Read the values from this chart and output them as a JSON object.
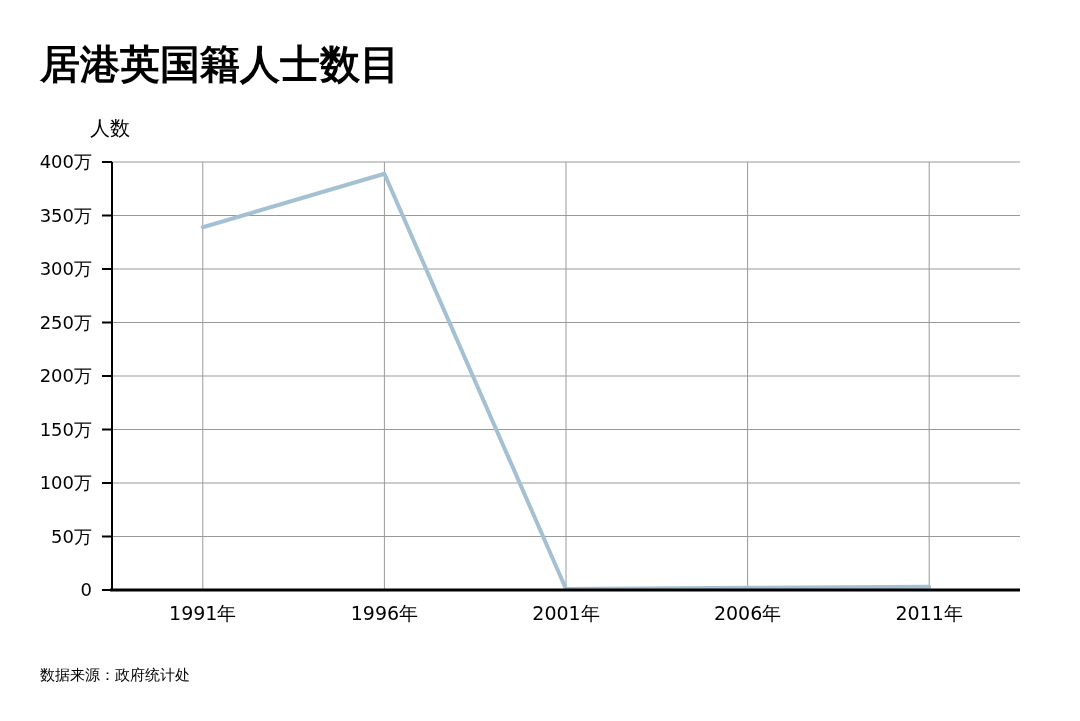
{
  "chart_data": {
    "type": "line",
    "title": "居港英国籍人士数目",
    "ylabel": "人数",
    "categories": [
      "1991年",
      "1996年",
      "2001年",
      "2006年",
      "2011年"
    ],
    "series": [
      {
        "color": "#a3c1d3",
        "values": [
          339,
          389,
          1,
          2,
          3
        ]
      }
    ],
    "ylim": [
      0,
      400
    ],
    "yticks": [
      0,
      {
        "value": 50,
        "label": "50万"
      },
      {
        "value": 100,
        "label": "100万"
      },
      {
        "value": 150,
        "label": "150万"
      },
      {
        "value": 200,
        "label": "200万"
      },
      {
        "value": 250,
        "label": "250万"
      },
      {
        "value": 300,
        "label": "300万"
      },
      {
        "value": 350,
        "label": "350万"
      },
      {
        "value": 400,
        "label": "400万"
      }
    ],
    "grid": true,
    "marker": "none",
    "line_style": "solid",
    "annotations": [
      "数据来源：政府统计处"
    ]
  }
}
